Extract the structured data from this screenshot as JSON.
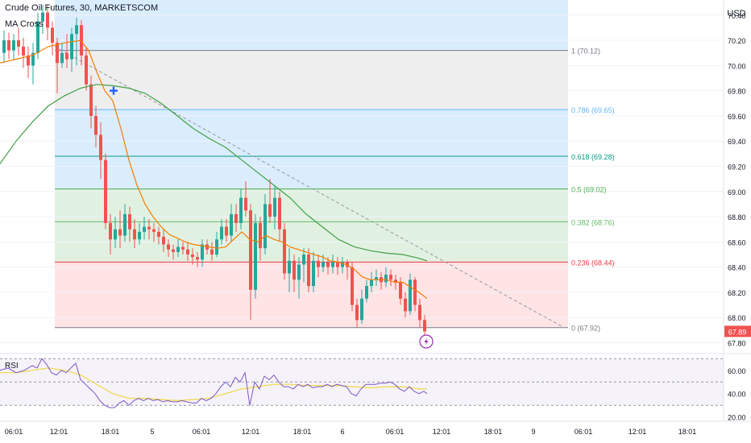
{
  "header": {
    "title": "Crude Oil Futures, 30, MARKETSCOM",
    "indicator": "MA Cross"
  },
  "price_axis": {
    "currency": "USD",
    "last_price": "67.89",
    "last_price_value": 67.89
  },
  "rsi_label": "RSI",
  "colors": {
    "up": "#26a69a",
    "down": "#ef5350",
    "ma_fast": "#f57c00",
    "ma_slow": "#43a047",
    "rsi_line": "#7e57c2",
    "rsi_signal": "#f0d94c",
    "zone_blue": "#bbdefb",
    "zone_gray": "#e0e0e0",
    "zone_green": "#c8e6c9",
    "zone_red": "#ffcdd2"
  },
  "chart_data": {
    "type": "candlestick",
    "y_range": [
      67.72,
      70.52
    ],
    "y_ticks": [
      "70.40",
      "70.20",
      "70.00",
      "69.80",
      "69.60",
      "69.40",
      "69.20",
      "69.00",
      "68.80",
      "68.60",
      "68.40",
      "68.20",
      "68.00",
      "67.80"
    ],
    "x_ticks": [
      "06:01",
      "12:01",
      "18:01",
      "5",
      "06:01",
      "12:01",
      "18:01",
      "6",
      "06:01",
      "12:01",
      "18:01",
      "9",
      "06:01",
      "12:01",
      "18:01"
    ],
    "fib_levels": [
      {
        "label": "1 (70.12)",
        "value": 70.12,
        "color": "#787b86"
      },
      {
        "label": "0.786 (69.65)",
        "value": 69.65,
        "color": "#64b5f6"
      },
      {
        "label": "0.618 (69.28)",
        "value": 69.28,
        "color": "#089981"
      },
      {
        "label": "0.5 (69.02)",
        "value": 69.02,
        "color": "#4caf50"
      },
      {
        "label": "0.382 (68.76)",
        "value": 68.76,
        "color": "#66bb6a"
      },
      {
        "label": "0.236 (68.44)",
        "value": 68.44,
        "color": "#f23645"
      },
      {
        "label": "0 (67.92)",
        "value": 67.92,
        "color": "#787b86"
      }
    ],
    "fib_top": 70.52,
    "trend_line": [
      [
        68,
        70.15
      ],
      [
        700,
        67.92
      ]
    ],
    "cross_marker": [
      141,
      69.8
    ],
    "candles": [
      [
        5,
        70.1,
        70.2,
        70.28,
        70.02
      ],
      [
        11,
        70.2,
        70.12,
        70.26,
        70.05
      ],
      [
        17,
        70.12,
        70.2,
        70.25,
        70.05
      ],
      [
        23,
        70.2,
        70.15,
        70.3,
        70.08
      ],
      [
        29,
        70.15,
        70.08,
        70.22,
        69.98
      ],
      [
        35,
        70.08,
        70.0,
        70.15,
        69.9
      ],
      [
        41,
        70.0,
        70.1,
        70.18,
        69.85
      ],
      [
        47,
        70.1,
        70.35,
        70.42,
        70.05
      ],
      [
        53,
        70.35,
        70.42,
        70.48,
        70.25
      ],
      [
        59,
        70.42,
        70.3,
        70.48,
        70.2
      ],
      [
        65,
        70.3,
        70.18,
        70.35,
        70.08
      ],
      [
        71,
        70.18,
        70.02,
        70.22,
        69.78
      ],
      [
        77,
        70.02,
        70.1,
        70.18,
        69.98
      ],
      [
        83,
        70.1,
        70.05,
        70.25,
        69.98
      ],
      [
        89,
        70.05,
        70.25,
        70.3,
        69.95
      ],
      [
        95,
        70.25,
        70.32,
        70.38,
        70.0
      ],
      [
        101,
        70.32,
        70.08,
        70.36,
        70.0
      ],
      [
        107,
        70.08,
        69.85,
        70.15,
        69.8
      ],
      [
        113,
        69.85,
        69.6,
        69.92,
        69.5
      ],
      [
        119,
        69.6,
        69.45,
        69.68,
        69.35
      ],
      [
        125,
        69.45,
        69.25,
        69.55,
        69.1
      ],
      [
        131,
        69.25,
        68.75,
        69.3,
        68.7
      ],
      [
        137,
        68.75,
        68.62,
        68.82,
        68.5
      ],
      [
        143,
        68.62,
        68.7,
        68.8,
        68.55
      ],
      [
        149,
        68.7,
        68.65,
        68.85,
        68.55
      ],
      [
        155,
        68.65,
        68.82,
        68.9,
        68.6
      ],
      [
        161,
        68.82,
        68.7,
        68.88,
        68.6
      ],
      [
        167,
        68.7,
        68.62,
        68.78,
        68.55
      ],
      [
        173,
        68.62,
        68.68,
        68.75,
        68.58
      ],
      [
        179,
        68.68,
        68.72,
        68.8,
        68.62
      ],
      [
        185,
        68.72,
        68.7,
        68.78,
        68.62
      ],
      [
        191,
        68.7,
        68.68,
        68.75,
        68.6
      ],
      [
        197,
        68.68,
        68.64,
        68.72,
        68.58
      ],
      [
        203,
        68.64,
        68.58,
        68.7,
        68.52
      ],
      [
        209,
        68.58,
        68.54,
        68.62,
        68.48
      ],
      [
        215,
        68.54,
        68.52,
        68.58,
        68.46
      ],
      [
        221,
        68.52,
        68.56,
        68.62,
        68.48
      ],
      [
        227,
        68.56,
        68.54,
        68.6,
        68.5
      ],
      [
        233,
        68.54,
        68.5,
        68.6,
        68.45
      ],
      [
        239,
        68.5,
        68.48,
        68.55,
        68.42
      ],
      [
        245,
        68.48,
        68.46,
        68.52,
        68.4
      ],
      [
        251,
        68.46,
        68.58,
        68.62,
        68.4
      ],
      [
        257,
        68.58,
        68.54,
        68.62,
        68.5
      ],
      [
        263,
        68.54,
        68.5,
        68.6,
        68.45
      ],
      [
        269,
        68.5,
        68.62,
        68.68,
        68.48
      ],
      [
        275,
        68.62,
        68.72,
        68.78,
        68.58
      ],
      [
        281,
        68.72,
        68.65,
        68.78,
        68.6
      ],
      [
        287,
        68.65,
        68.82,
        68.9,
        68.6
      ],
      [
        293,
        68.82,
        68.75,
        68.9,
        68.68
      ],
      [
        299,
        68.75,
        68.95,
        69.02,
        68.7
      ],
      [
        305,
        68.95,
        68.85,
        69.08,
        68.8
      ],
      [
        311,
        68.85,
        68.22,
        68.9,
        67.98
      ],
      [
        317,
        68.22,
        68.75,
        68.82,
        68.15
      ],
      [
        323,
        68.75,
        68.55,
        68.8,
        68.45
      ],
      [
        329,
        68.55,
        68.9,
        68.98,
        68.5
      ],
      [
        335,
        68.9,
        68.8,
        69.1,
        68.75
      ],
      [
        341,
        68.8,
        68.95,
        69.05,
        68.7
      ],
      [
        347,
        68.95,
        68.7,
        69.0,
        68.6
      ],
      [
        353,
        68.7,
        68.35,
        68.75,
        68.3
      ],
      [
        359,
        68.35,
        68.45,
        68.55,
        68.2
      ],
      [
        365,
        68.45,
        68.3,
        68.5,
        68.2
      ],
      [
        371,
        68.3,
        68.42,
        68.48,
        68.15
      ],
      [
        377,
        68.42,
        68.5,
        68.55,
        68.28
      ],
      [
        383,
        68.5,
        68.25,
        68.55,
        68.2
      ],
      [
        389,
        68.25,
        68.45,
        68.52,
        68.2
      ],
      [
        395,
        68.45,
        68.4,
        68.5,
        68.32
      ],
      [
        401,
        68.4,
        68.44,
        68.5,
        68.36
      ],
      [
        407,
        68.44,
        68.4,
        68.48,
        68.34
      ],
      [
        413,
        68.4,
        68.44,
        68.5,
        68.35
      ],
      [
        419,
        68.44,
        68.4,
        68.48,
        68.34
      ],
      [
        425,
        68.4,
        68.44,
        68.48,
        68.35
      ],
      [
        431,
        68.44,
        68.4,
        68.46,
        68.3
      ],
      [
        437,
        68.4,
        68.1,
        68.44,
        68.05
      ],
      [
        443,
        68.1,
        67.98,
        68.15,
        67.92
      ],
      [
        449,
        67.98,
        68.15,
        68.22,
        67.95
      ],
      [
        455,
        68.15,
        68.25,
        68.3,
        68.12
      ],
      [
        461,
        68.25,
        68.3,
        68.36,
        68.2
      ],
      [
        467,
        68.3,
        68.32,
        68.38,
        68.25
      ],
      [
        473,
        68.32,
        68.28,
        68.36,
        68.22
      ],
      [
        479,
        68.28,
        68.34,
        68.4,
        68.24
      ],
      [
        485,
        68.34,
        68.3,
        68.38,
        68.25
      ],
      [
        491,
        68.3,
        68.28,
        68.34,
        68.22
      ],
      [
        497,
        68.28,
        68.15,
        68.32,
        68.1
      ],
      [
        503,
        68.15,
        68.05,
        68.2,
        68.0
      ],
      [
        509,
        68.05,
        68.3,
        68.35,
        68.02
      ],
      [
        515,
        68.3,
        68.1,
        68.32,
        68.05
      ],
      [
        521,
        68.1,
        67.98,
        68.15,
        67.92
      ],
      [
        527,
        67.98,
        67.89,
        68.02,
        67.82
      ]
    ],
    "ma_fast": [
      [
        0,
        70.02
      ],
      [
        20,
        70.05
      ],
      [
        40,
        70.08
      ],
      [
        60,
        70.15
      ],
      [
        80,
        70.18
      ],
      [
        100,
        70.2
      ],
      [
        110,
        70.12
      ],
      [
        120,
        69.95
      ],
      [
        130,
        69.8
      ],
      [
        140,
        69.72
      ],
      [
        150,
        69.5
      ],
      [
        160,
        69.25
      ],
      [
        170,
        69.05
      ],
      [
        180,
        68.9
      ],
      [
        190,
        68.8
      ],
      [
        200,
        68.72
      ],
      [
        210,
        68.66
      ],
      [
        220,
        68.63
      ],
      [
        230,
        68.6
      ],
      [
        240,
        68.58
      ],
      [
        250,
        68.57
      ],
      [
        260,
        68.56
      ],
      [
        270,
        68.55
      ],
      [
        280,
        68.56
      ],
      [
        290,
        68.62
      ],
      [
        300,
        68.68
      ],
      [
        310,
        68.62
      ],
      [
        320,
        68.6
      ],
      [
        330,
        68.65
      ],
      [
        340,
        68.62
      ],
      [
        350,
        68.6
      ],
      [
        360,
        68.56
      ],
      [
        370,
        68.54
      ],
      [
        380,
        68.52
      ],
      [
        390,
        68.5
      ],
      [
        400,
        68.48
      ],
      [
        410,
        68.45
      ],
      [
        420,
        68.44
      ],
      [
        430,
        68.42
      ],
      [
        440,
        68.38
      ],
      [
        450,
        68.32
      ],
      [
        460,
        68.3
      ],
      [
        470,
        68.3
      ],
      [
        480,
        68.3
      ],
      [
        490,
        68.28
      ],
      [
        500,
        68.28
      ],
      [
        510,
        68.24
      ],
      [
        520,
        68.2
      ],
      [
        530,
        68.15
      ]
    ],
    "ma_slow": [
      [
        0,
        69.22
      ],
      [
        20,
        69.4
      ],
      [
        40,
        69.55
      ],
      [
        60,
        69.68
      ],
      [
        80,
        69.76
      ],
      [
        100,
        69.82
      ],
      [
        120,
        69.85
      ],
      [
        140,
        69.84
      ],
      [
        160,
        69.82
      ],
      [
        180,
        69.78
      ],
      [
        200,
        69.7
      ],
      [
        220,
        69.6
      ],
      [
        240,
        69.5
      ],
      [
        260,
        69.42
      ],
      [
        280,
        69.35
      ],
      [
        300,
        69.25
      ],
      [
        320,
        69.15
      ],
      [
        340,
        69.05
      ],
      [
        360,
        68.95
      ],
      [
        380,
        68.82
      ],
      [
        400,
        68.72
      ],
      [
        420,
        68.62
      ],
      [
        440,
        68.56
      ],
      [
        460,
        68.53
      ],
      [
        480,
        68.51
      ],
      [
        500,
        68.5
      ],
      [
        520,
        68.47
      ],
      [
        530,
        68.45
      ]
    ],
    "rsi": {
      "y_ticks": [
        "60.00",
        "40.00",
        "20.00"
      ],
      "upper": 70,
      "lower": 30,
      "range": [
        17,
        73
      ],
      "line": [
        [
          0,
          60
        ],
        [
          10,
          62
        ],
        [
          20,
          58
        ],
        [
          30,
          60
        ],
        [
          40,
          64
        ],
        [
          46,
          62
        ],
        [
          52,
          70
        ],
        [
          58,
          65
        ],
        [
          64,
          58
        ],
        [
          70,
          56
        ],
        [
          76,
          60
        ],
        [
          82,
          58
        ],
        [
          88,
          62
        ],
        [
          94,
          66
        ],
        [
          100,
          52
        ],
        [
          106,
          48
        ],
        [
          112,
          44
        ],
        [
          118,
          40
        ],
        [
          124,
          34
        ],
        [
          130,
          30
        ],
        [
          136,
          28
        ],
        [
          142,
          28
        ],
        [
          148,
          32
        ],
        [
          154,
          34
        ],
        [
          160,
          30
        ],
        [
          166,
          34
        ],
        [
          172,
          36
        ],
        [
          178,
          34
        ],
        [
          184,
          36
        ],
        [
          190,
          34
        ],
        [
          196,
          35
        ],
        [
          202,
          33
        ],
        [
          208,
          34
        ],
        [
          214,
          33
        ],
        [
          220,
          33
        ],
        [
          226,
          34
        ],
        [
          232,
          33
        ],
        [
          238,
          32
        ],
        [
          244,
          32
        ],
        [
          250,
          36
        ],
        [
          256,
          34
        ],
        [
          262,
          36
        ],
        [
          268,
          40
        ],
        [
          274,
          46
        ],
        [
          280,
          50
        ],
        [
          286,
          46
        ],
        [
          292,
          54
        ],
        [
          298,
          50
        ],
        [
          304,
          58
        ],
        [
          310,
          30
        ],
        [
          316,
          50
        ],
        [
          322,
          44
        ],
        [
          328,
          55
        ],
        [
          334,
          52
        ],
        [
          340,
          56
        ],
        [
          346,
          50
        ],
        [
          352,
          46
        ],
        [
          358,
          46
        ],
        [
          364,
          44
        ],
        [
          370,
          48
        ],
        [
          376,
          46
        ],
        [
          382,
          48
        ],
        [
          388,
          45
        ],
        [
          394,
          46
        ],
        [
          400,
          46
        ],
        [
          406,
          48
        ],
        [
          412,
          46
        ],
        [
          418,
          48
        ],
        [
          424,
          47
        ],
        [
          430,
          46
        ],
        [
          436,
          40
        ],
        [
          442,
          38
        ],
        [
          448,
          44
        ],
        [
          454,
          48
        ],
        [
          460,
          48
        ],
        [
          466,
          48
        ],
        [
          472,
          49
        ],
        [
          478,
          49
        ],
        [
          484,
          50
        ],
        [
          490,
          48
        ],
        [
          496,
          44
        ],
        [
          502,
          42
        ],
        [
          508,
          46
        ],
        [
          514,
          42
        ],
        [
          520,
          40
        ],
        [
          526,
          42
        ],
        [
          530,
          40
        ]
      ],
      "signal": [
        [
          0,
          58
        ],
        [
          20,
          58
        ],
        [
          40,
          60
        ],
        [
          60,
          62
        ],
        [
          80,
          60
        ],
        [
          100,
          56
        ],
        [
          120,
          48
        ],
        [
          140,
          40
        ],
        [
          160,
          36
        ],
        [
          180,
          36
        ],
        [
          200,
          35
        ],
        [
          220,
          34
        ],
        [
          240,
          35
        ],
        [
          260,
          36
        ],
        [
          280,
          40
        ],
        [
          300,
          44
        ],
        [
          320,
          46
        ],
        [
          340,
          48
        ],
        [
          360,
          48
        ],
        [
          380,
          47
        ],
        [
          400,
          47
        ],
        [
          420,
          47
        ],
        [
          440,
          46
        ],
        [
          460,
          45
        ],
        [
          480,
          46
        ],
        [
          500,
          46
        ],
        [
          520,
          44
        ],
        [
          530,
          44
        ]
      ]
    }
  }
}
